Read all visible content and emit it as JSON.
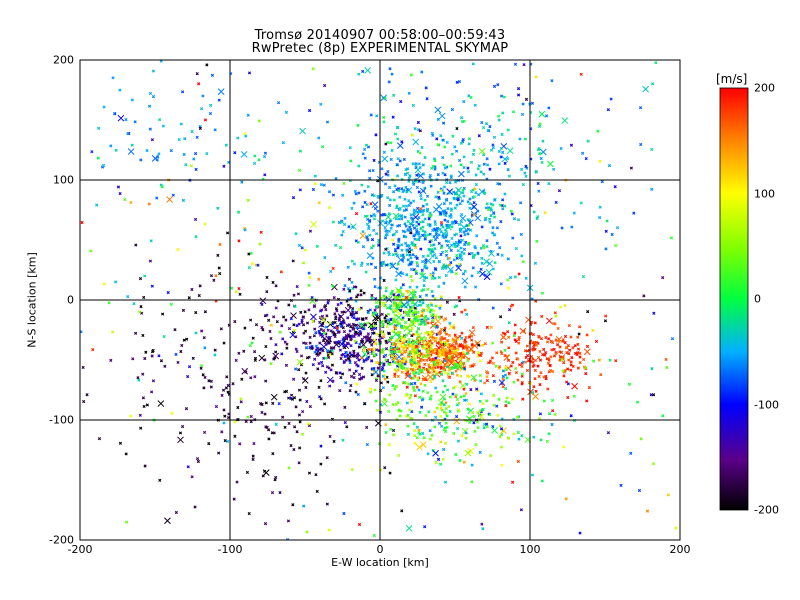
{
  "chart_data": {
    "type": "scatter",
    "title": "Tromsø 20140907 00:58:00–00:59:43",
    "subtitle": "RwPretec (8p) EXPERIMENTAL SKYMAP",
    "xlabel": "E-W location [km]",
    "ylabel": "N-S location [km]",
    "xlim": [
      -200,
      200
    ],
    "ylim": [
      -200,
      200
    ],
    "xticks": [
      "-200",
      "-100",
      "0",
      "100",
      "200"
    ],
    "yticks": [
      "-200",
      "-100",
      "0",
      "100",
      "200"
    ],
    "grid": true,
    "colorbar": {
      "label": "[m/s]",
      "range": [
        -200,
        200
      ],
      "ticks": [
        "200",
        "100",
        "0",
        "-100",
        "-200"
      ]
    },
    "clusters": [
      {
        "x": 30,
        "y": 60,
        "sx": 28,
        "sy": 28,
        "count": 700,
        "v": -50,
        "vs": 20
      },
      {
        "x": 60,
        "y": 120,
        "sx": 50,
        "sy": 40,
        "count": 250,
        "v": -45,
        "vs": 30
      },
      {
        "x": -20,
        "y": -30,
        "sx": 22,
        "sy": 18,
        "count": 450,
        "v": -150,
        "vs": 40
      },
      {
        "x": 40,
        "y": -45,
        "sx": 16,
        "sy": 12,
        "count": 450,
        "v": 160,
        "vs": 30
      },
      {
        "x": 20,
        "y": -35,
        "sx": 12,
        "sy": 18,
        "count": 250,
        "v": 50,
        "vs": 50
      },
      {
        "x": 15,
        "y": -5,
        "sx": 10,
        "sy": 10,
        "count": 120,
        "v": 20,
        "vs": 40
      },
      {
        "x": 110,
        "y": -45,
        "sx": 20,
        "sy": 15,
        "count": 200,
        "v": 185,
        "vs": 15
      },
      {
        "x": 50,
        "y": -90,
        "sx": 30,
        "sy": 25,
        "count": 300,
        "v": 20,
        "vs": 60
      },
      {
        "x": -90,
        "y": -70,
        "sx": 50,
        "sy": 50,
        "count": 250,
        "v": -185,
        "vs": 20
      },
      {
        "x": -130,
        "y": 140,
        "sx": 35,
        "sy": 25,
        "count": 80,
        "v": -60,
        "vs": 20
      },
      {
        "x": 0,
        "y": 0,
        "sx": 130,
        "sy": 120,
        "count": 400,
        "v": 0,
        "vs": 120
      }
    ]
  }
}
